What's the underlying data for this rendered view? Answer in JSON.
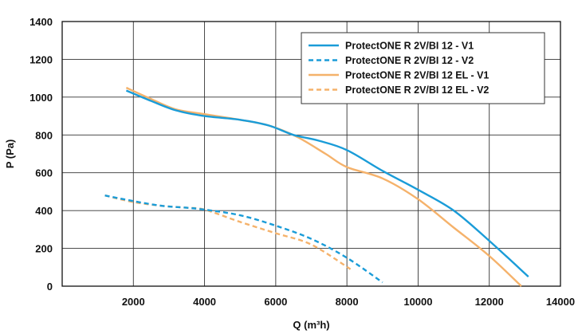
{
  "chart_data": {
    "type": "line",
    "xlabel": "Q (m³h)",
    "ylabel": "P (Pa)",
    "xlim": [
      0,
      14000
    ],
    "ylim": [
      0,
      1400
    ],
    "x_ticks": [
      2000,
      4000,
      6000,
      8000,
      10000,
      12000,
      14000
    ],
    "y_ticks": [
      0,
      200,
      400,
      600,
      800,
      1000,
      1200,
      1400
    ],
    "grid": true,
    "legend_position": "top-right",
    "series": [
      {
        "name": "ProtectONE R 2V/BI 12 - V1",
        "color": "#1a9cd8",
        "dash": "solid",
        "points": [
          [
            1800,
            1035
          ],
          [
            2500,
            980
          ],
          [
            3200,
            930
          ],
          [
            4000,
            900
          ],
          [
            5000,
            880
          ],
          [
            5800,
            850
          ],
          [
            6500,
            800
          ],
          [
            7200,
            770
          ],
          [
            8000,
            720
          ],
          [
            9000,
            610
          ],
          [
            10000,
            510
          ],
          [
            11000,
            400
          ],
          [
            12000,
            240
          ],
          [
            13100,
            50
          ]
        ]
      },
      {
        "name": "ProtectONE R 2V/BI 12 - V2",
        "color": "#1a9cd8",
        "dash": "dashed",
        "points": [
          [
            1200,
            480
          ],
          [
            2000,
            450
          ],
          [
            2800,
            425
          ],
          [
            3500,
            415
          ],
          [
            4000,
            405
          ],
          [
            5000,
            375
          ],
          [
            6000,
            320
          ],
          [
            7000,
            250
          ],
          [
            8000,
            150
          ],
          [
            9000,
            20
          ]
        ]
      },
      {
        "name": "ProtectONE R 2V/BI 12 EL - V1",
        "color": "#f5b26b",
        "dash": "solid",
        "points": [
          [
            1800,
            1050
          ],
          [
            2500,
            990
          ],
          [
            3200,
            935
          ],
          [
            4000,
            910
          ],
          [
            5000,
            880
          ],
          [
            5800,
            850
          ],
          [
            6600,
            790
          ],
          [
            7400,
            700
          ],
          [
            8000,
            630
          ],
          [
            9000,
            570
          ],
          [
            10000,
            460
          ],
          [
            11000,
            310
          ],
          [
            12000,
            160
          ],
          [
            12900,
            0
          ]
        ]
      },
      {
        "name": "ProtectONE R 2V/BI 12 EL - V2",
        "color": "#f5b26b",
        "dash": "dashed",
        "points": [
          [
            1200,
            480
          ],
          [
            2000,
            445
          ],
          [
            2800,
            425
          ],
          [
            3500,
            415
          ],
          [
            4000,
            405
          ],
          [
            5000,
            340
          ],
          [
            6000,
            280
          ],
          [
            7000,
            220
          ],
          [
            8100,
            90
          ]
        ]
      }
    ]
  }
}
